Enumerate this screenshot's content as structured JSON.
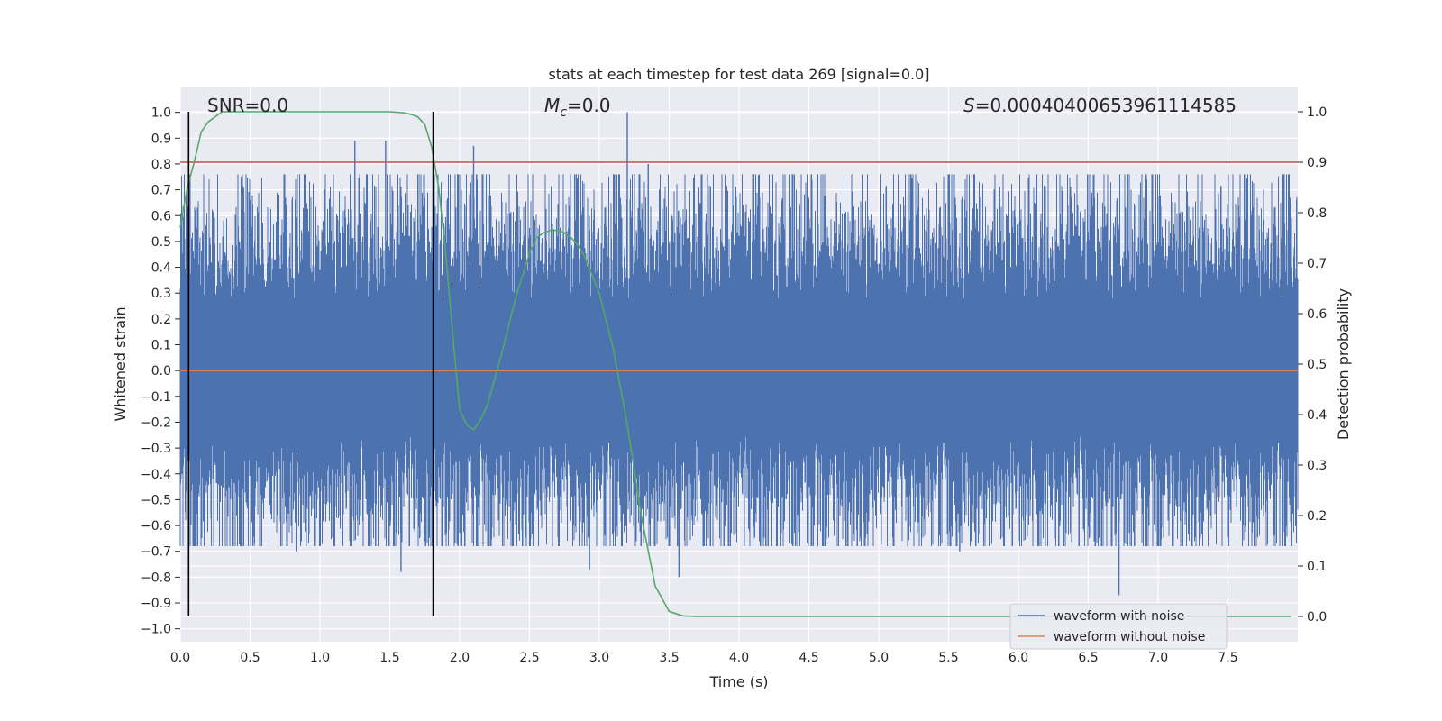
{
  "chart_data": {
    "type": "line",
    "title": "stats at each timestep for test data 269 [signal=0.0]",
    "xlabel": "Time (s)",
    "ylabel_left": "Whitened strain",
    "ylabel_right": "Detection probability",
    "xlim": [
      0.0,
      8.0
    ],
    "ylim_left": [
      -1.05,
      1.1
    ],
    "ylim_right": [
      -0.05,
      1.05
    ],
    "x_ticks": [
      "0.0",
      "0.5",
      "1.0",
      "1.5",
      "2.0",
      "2.5",
      "3.0",
      "3.5",
      "4.0",
      "4.5",
      "5.0",
      "5.5",
      "6.0",
      "6.5",
      "7.0",
      "7.5"
    ],
    "y_ticks_left": [
      "-1.0",
      "-0.9",
      "-0.8",
      "-0.7",
      "-0.6",
      "-0.5",
      "-0.4",
      "-0.3",
      "-0.2",
      "-0.1",
      "0.0",
      "0.1",
      "0.2",
      "0.3",
      "0.4",
      "0.5",
      "0.6",
      "0.7",
      "0.8",
      "0.9",
      "1.0"
    ],
    "y_ticks_right": [
      "0.0",
      "0.1",
      "0.2",
      "0.3",
      "0.4",
      "0.5",
      "0.6",
      "0.7",
      "0.8",
      "0.9",
      "1.0"
    ],
    "grid": true,
    "legend_position": "lower-right",
    "annotations": {
      "snr": "SNR=0.0",
      "mc_symbol": "M",
      "mc_subscript": "c",
      "mc_value": "=0.0",
      "s_symbol": "S",
      "s_value": "=0.00040400653961114585"
    },
    "series": [
      {
        "name": "waveform with noise",
        "color": "#4c72b0",
        "axis": "left",
        "description_range": [
          -1.0,
          1.0
        ],
        "noise_std": 0.2,
        "x_end": 8.0,
        "spikes": [
          {
            "x": 1.25,
            "y": 0.89
          },
          {
            "x": 1.47,
            "y": 0.89
          },
          {
            "x": 2.1,
            "y": 0.87
          },
          {
            "x": 3.2,
            "y": 1.0
          },
          {
            "x": 3.35,
            "y": 0.8
          },
          {
            "x": 0.06,
            "y": -0.84
          },
          {
            "x": 1.58,
            "y": -0.78
          },
          {
            "x": 2.93,
            "y": -0.77
          },
          {
            "x": 3.57,
            "y": -0.8
          },
          {
            "x": 6.72,
            "y": -0.87
          },
          {
            "x": 0.83,
            "y": -0.7
          },
          {
            "x": 5.58,
            "y": -0.7
          }
        ]
      },
      {
        "name": "waveform without noise",
        "color": "#dd8452",
        "axis": "left",
        "x": [
          0.0,
          8.0
        ],
        "y": [
          0.0,
          0.0
        ]
      },
      {
        "name": "",
        "color": "#55a868",
        "axis": "right",
        "x": [
          0.0,
          0.05,
          0.1,
          0.15,
          0.2,
          0.25,
          0.3,
          0.4,
          0.5,
          1.0,
          1.5,
          1.6,
          1.65,
          1.7,
          1.75,
          1.8,
          1.85,
          1.9,
          1.95,
          2.0,
          2.05,
          2.1,
          2.15,
          2.2,
          2.3,
          2.4,
          2.5,
          2.55,
          2.6,
          2.65,
          2.7,
          2.75,
          2.8,
          2.85,
          2.9,
          3.0,
          3.1,
          3.2,
          3.3,
          3.4,
          3.5,
          3.6,
          3.7,
          4.0,
          5.0,
          6.0,
          7.0,
          7.95
        ],
        "y": [
          0.77,
          0.85,
          0.9,
          0.96,
          0.98,
          0.99,
          1.0,
          1.0,
          1.0,
          1.0,
          1.0,
          0.998,
          0.995,
          0.99,
          0.975,
          0.93,
          0.85,
          0.72,
          0.56,
          0.41,
          0.38,
          0.37,
          0.39,
          0.42,
          0.52,
          0.63,
          0.72,
          0.75,
          0.76,
          0.765,
          0.765,
          0.76,
          0.75,
          0.735,
          0.71,
          0.64,
          0.53,
          0.38,
          0.2,
          0.06,
          0.01,
          0.001,
          0.0,
          0.0,
          0.0,
          0.0,
          0.0,
          0.0
        ]
      }
    ],
    "hlines": [
      {
        "axis": "right",
        "y": 0.9,
        "color": "#c44e52"
      }
    ],
    "vlines": [
      {
        "x": 0.06,
        "color": "#000000"
      },
      {
        "x": 1.81,
        "color": "#000000"
      }
    ]
  }
}
